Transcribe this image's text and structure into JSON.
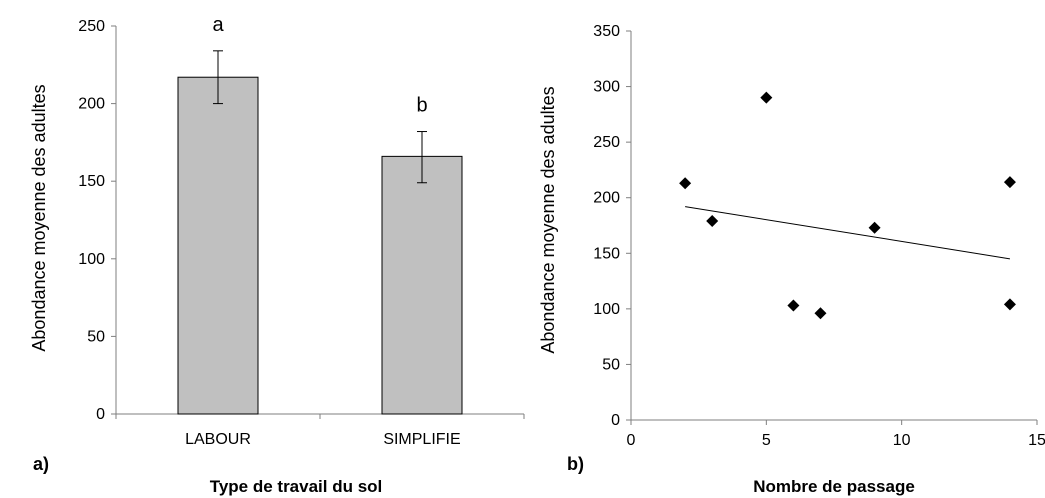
{
  "chart_data": [
    {
      "type": "bar",
      "panel_label": "a)",
      "xlabel": "Type de travail du sol",
      "ylabel": "Abondance moyenne  des adultes",
      "categories": [
        "LABOUR",
        "SIMPLIFIE"
      ],
      "values": [
        217,
        166
      ],
      "error_bars": [
        [
          200,
          234
        ],
        [
          149,
          182
        ]
      ],
      "significance_letters": [
        "a",
        "b"
      ],
      "ylim": [
        0,
        250
      ],
      "yticks": [
        0,
        50,
        100,
        150,
        200,
        250
      ],
      "bar_color": "#c0c0c0",
      "grid": false
    },
    {
      "type": "scatter",
      "panel_label": "b)",
      "xlabel": "Nombre de passage",
      "ylabel": "Abondance moyenne des adultes",
      "x": [
        2,
        3,
        5,
        6,
        7,
        9,
        14,
        14
      ],
      "y": [
        213,
        179,
        290,
        103,
        96,
        173,
        214,
        104
      ],
      "trendline": {
        "x": [
          2,
          14
        ],
        "y": [
          192,
          145
        ]
      },
      "xlim": [
        0,
        15
      ],
      "ylim": [
        0,
        350
      ],
      "xticks": [
        0,
        5,
        10,
        15
      ],
      "yticks": [
        0,
        50,
        100,
        150,
        200,
        250,
        300,
        350
      ],
      "marker": "diamond",
      "marker_color": "#000000",
      "grid": false
    }
  ]
}
